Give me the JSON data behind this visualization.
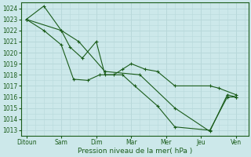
{
  "x_labels": [
    "Ditoun",
    "Sam",
    "Dim",
    "Mar",
    "Mer",
    "Jeu",
    "Ven"
  ],
  "x_positions": [
    0,
    2,
    4,
    6,
    8,
    10,
    12
  ],
  "xlabel": "Pression niveau de la mer( hPa )",
  "ylim": [
    1012.5,
    1024.5
  ],
  "yticks": [
    1013,
    1014,
    1015,
    1016,
    1017,
    1018,
    1019,
    1020,
    1021,
    1022,
    1023,
    1024
  ],
  "bg_color": "#cce8ea",
  "line_color": "#1a5c1a",
  "grid_color": "#b8d8da",
  "series": [
    {
      "x": [
        0,
        1.0,
        2.0,
        2.5,
        3.2,
        4.0,
        4.5,
        5.0,
        5.5,
        6.0,
        6.8,
        7.5,
        8.5,
        10.5,
        11.0,
        12.0
      ],
      "y": [
        1023.0,
        1024.2,
        1022.0,
        1020.5,
        1019.5,
        1021.0,
        1018.0,
        1018.0,
        1018.5,
        1019.0,
        1018.5,
        1018.3,
        1017.0,
        1017.0,
        1016.8,
        1016.2
      ]
    },
    {
      "x": [
        0,
        1.0,
        2.0,
        2.7,
        3.5,
        4.2,
        5.5,
        6.2,
        7.5,
        8.5,
        10.5,
        11.5,
        12.0
      ],
      "y": [
        1023.0,
        1022.0,
        1020.7,
        1017.6,
        1017.5,
        1018.0,
        1018.0,
        1017.0,
        1015.2,
        1013.3,
        1013.0,
        1016.0,
        1016.0
      ]
    },
    {
      "x": [
        0,
        2.0,
        3.0,
        4.5,
        6.5,
        8.5,
        10.5,
        11.5,
        12.0
      ],
      "y": [
        1023.0,
        1022.0,
        1021.0,
        1018.3,
        1018.0,
        1015.0,
        1012.9,
        1016.2,
        1016.0
      ]
    }
  ],
  "figsize": [
    3.2,
    2.0
  ],
  "dpi": 100,
  "title_fontsize": 7.0,
  "tick_fontsize": 5.5,
  "xlabel_fontsize": 6.5
}
